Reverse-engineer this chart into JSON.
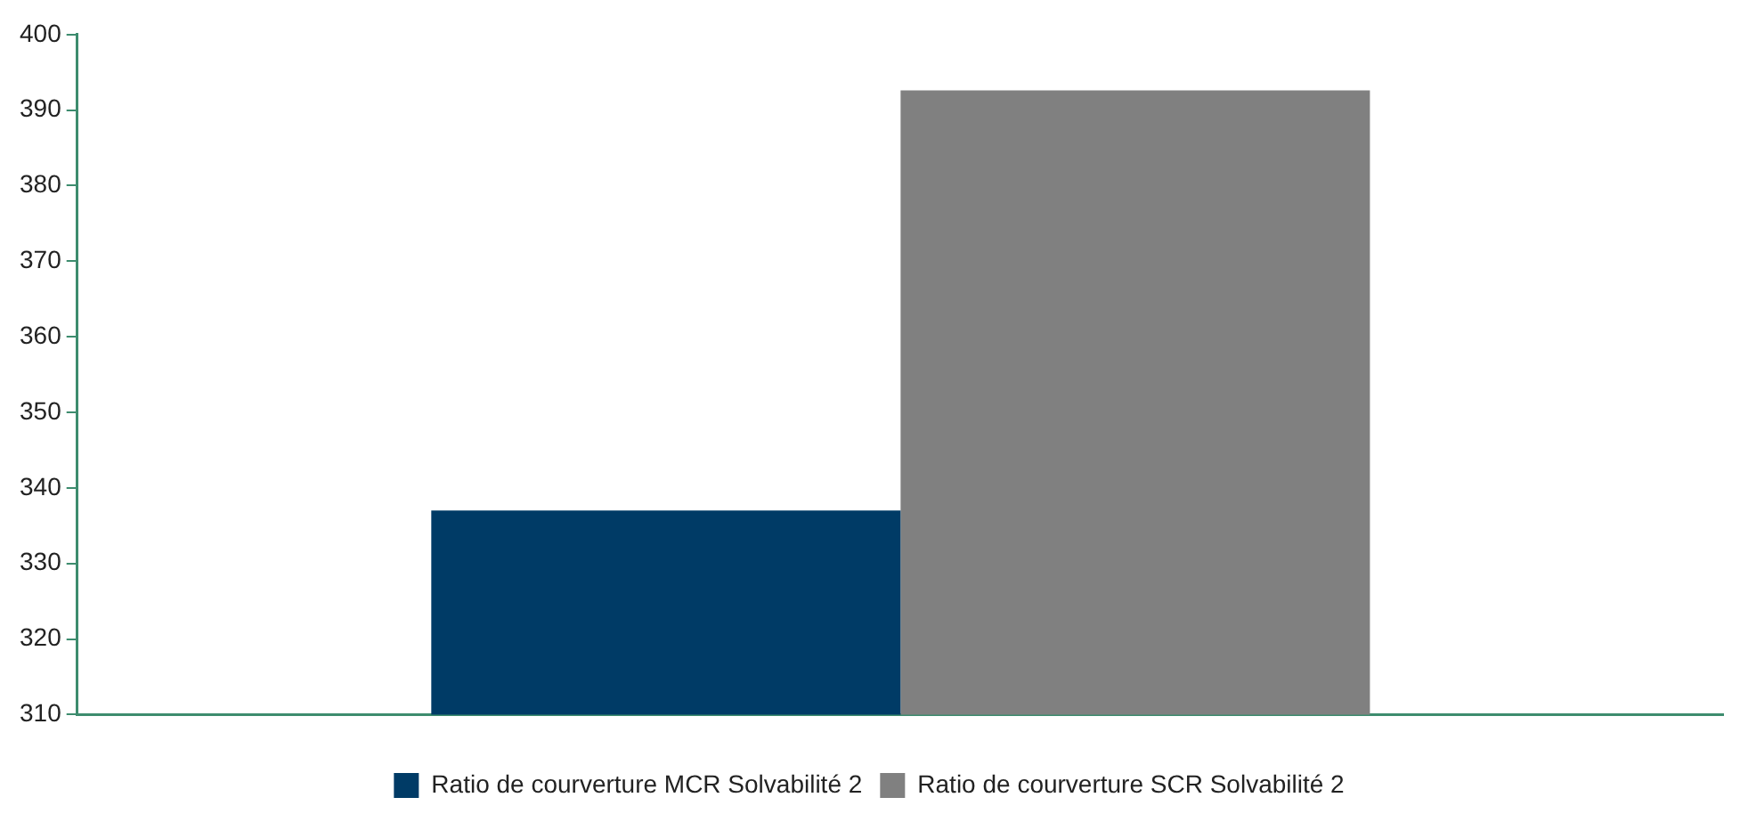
{
  "chart_data": {
    "type": "bar",
    "categories": [
      null
    ],
    "series": [
      {
        "name": "Ratio de courverture MCR Solvabilité 2",
        "color": "#003b66",
        "values": [
          337
        ]
      },
      {
        "name": "Ratio de courverture SCR Solvabilité 2",
        "color": "#808080",
        "values": [
          392.6
        ]
      }
    ],
    "ylim": [
      310,
      400
    ],
    "yticks": [
      310,
      320,
      330,
      340,
      350,
      360,
      370,
      380,
      390,
      400
    ],
    "grid": false,
    "legend": "bottom"
  }
}
